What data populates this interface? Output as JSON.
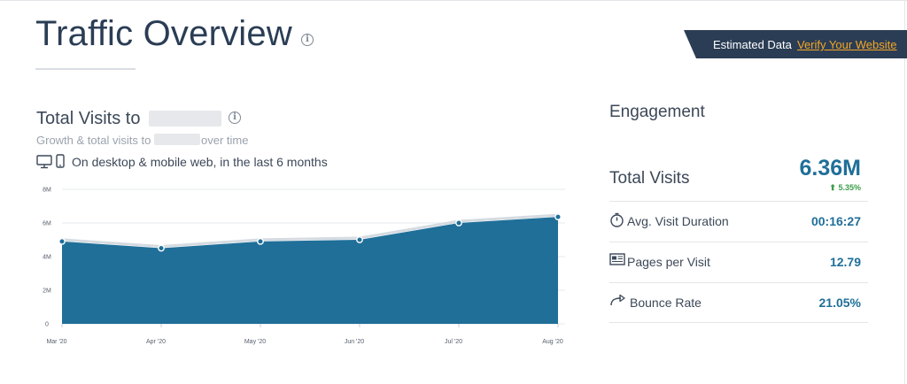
{
  "header": {
    "title": "Traffic Overview",
    "info_icon": "info-icon"
  },
  "banner": {
    "text": "Estimated Data",
    "link": "Verify Your Website",
    "background": "#2b3d55",
    "link_color": "#f5a623"
  },
  "visits_section": {
    "title": "Total Visits to",
    "subtitle_prefix": "Growth & total visits to",
    "subtitle_suffix": "over time",
    "device_text": "On desktop & mobile web, in the last 6 months",
    "icons": [
      "desktop-icon",
      "mobile-icon"
    ]
  },
  "chart_data": {
    "type": "area",
    "categories": [
      "Mar '20",
      "Apr '20",
      "May '20",
      "Jun '20",
      "Jul '20",
      "Aug '20"
    ],
    "values": [
      4.9,
      4.5,
      4.9,
      5.0,
      6.0,
      6.36
    ],
    "unit": "M",
    "y_ticks": [
      "0",
      "2M",
      "4M",
      "6M",
      "8M"
    ],
    "ylim": [
      0,
      8
    ],
    "grid": true,
    "color": "#1f6f99"
  },
  "engagement": {
    "title": "Engagement",
    "total_visits_label": "Total Visits",
    "total_visits_value": "6.36M",
    "total_visits_change": "5.35%",
    "change_color": "#3c9e4a",
    "metrics": [
      {
        "label": "Avg. Visit Duration",
        "value": "00:16:27",
        "icon": "stopwatch-icon"
      },
      {
        "label": "Pages per Visit",
        "value": "12.79",
        "icon": "pages-icon"
      },
      {
        "label": "Bounce Rate",
        "value": "21.05%",
        "icon": "bounce-arrow-icon"
      }
    ]
  }
}
